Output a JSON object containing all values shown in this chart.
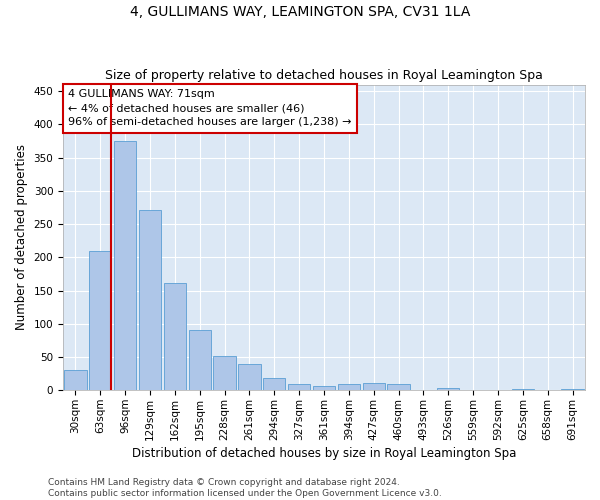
{
  "title": "4, GULLIMANS WAY, LEAMINGTON SPA, CV31 1LA",
  "subtitle": "Size of property relative to detached houses in Royal Leamington Spa",
  "xlabel": "Distribution of detached houses by size in Royal Leamington Spa",
  "ylabel": "Number of detached properties",
  "footer": "Contains HM Land Registry data © Crown copyright and database right 2024.\nContains public sector information licensed under the Open Government Licence v3.0.",
  "categories": [
    "30sqm",
    "63sqm",
    "96sqm",
    "129sqm",
    "162sqm",
    "195sqm",
    "228sqm",
    "261sqm",
    "294sqm",
    "327sqm",
    "361sqm",
    "394sqm",
    "427sqm",
    "460sqm",
    "493sqm",
    "526sqm",
    "559sqm",
    "592sqm",
    "625sqm",
    "658sqm",
    "691sqm"
  ],
  "values": [
    30,
    210,
    375,
    272,
    161,
    90,
    52,
    40,
    19,
    10,
    6,
    10,
    11,
    10,
    0,
    4,
    0,
    0,
    2,
    0,
    2
  ],
  "bar_color": "#aec6e8",
  "bar_edge_color": "#5a9fd4",
  "ref_line_color": "#cc0000",
  "annotation_text": "4 GULLIMANS WAY: 71sqm\n← 4% of detached houses are smaller (46)\n96% of semi-detached houses are larger (1,238) →",
  "annotation_box_color": "#ffffff",
  "annotation_box_edge": "#cc0000",
  "ylim": [
    0,
    460
  ],
  "yticks": [
    0,
    50,
    100,
    150,
    200,
    250,
    300,
    350,
    400,
    450
  ],
  "bg_color": "#dce8f5",
  "title_fontsize": 10,
  "subtitle_fontsize": 9,
  "xlabel_fontsize": 8.5,
  "ylabel_fontsize": 8.5,
  "tick_fontsize": 7.5,
  "footer_fontsize": 6.5,
  "annotation_fontsize": 8
}
